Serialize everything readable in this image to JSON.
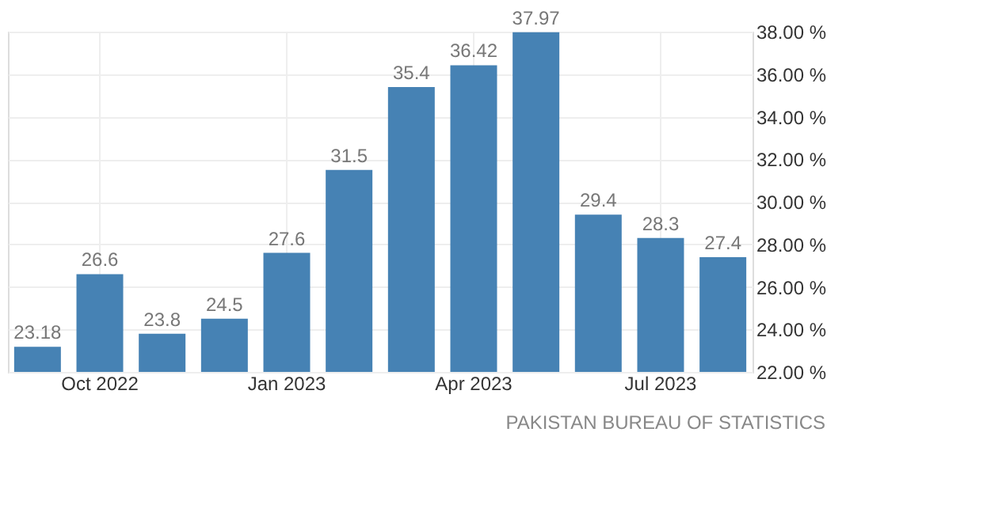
{
  "chart_data": {
    "type": "bar",
    "categories": [
      null,
      "Oct 2022",
      null,
      null,
      "Jan 2023",
      null,
      null,
      "Apr 2023",
      null,
      null,
      "Jul 2023",
      null
    ],
    "values": [
      23.18,
      26.6,
      23.8,
      24.5,
      27.6,
      31.5,
      35.4,
      36.42,
      37.97,
      29.4,
      28.3,
      27.4
    ],
    "color": "#4682b4",
    "ylim": [
      22,
      38
    ],
    "yticks": [
      {
        "value": 22,
        "label": "22.00 %"
      },
      {
        "value": 24,
        "label": "24.00 %"
      },
      {
        "value": 26,
        "label": "26.00 %"
      },
      {
        "value": 28,
        "label": "28.00 %"
      },
      {
        "value": 30,
        "label": "30.00 %"
      },
      {
        "value": 32,
        "label": "32.00 %"
      },
      {
        "value": 34,
        "label": "34.00 %"
      },
      {
        "value": 36,
        "label": "36.00 %"
      },
      {
        "value": 38,
        "label": "38.00 %"
      }
    ],
    "grid": true,
    "data_labels": true,
    "annotations": [
      "PAKISTAN BUREAU OF STATISTICS"
    ]
  }
}
